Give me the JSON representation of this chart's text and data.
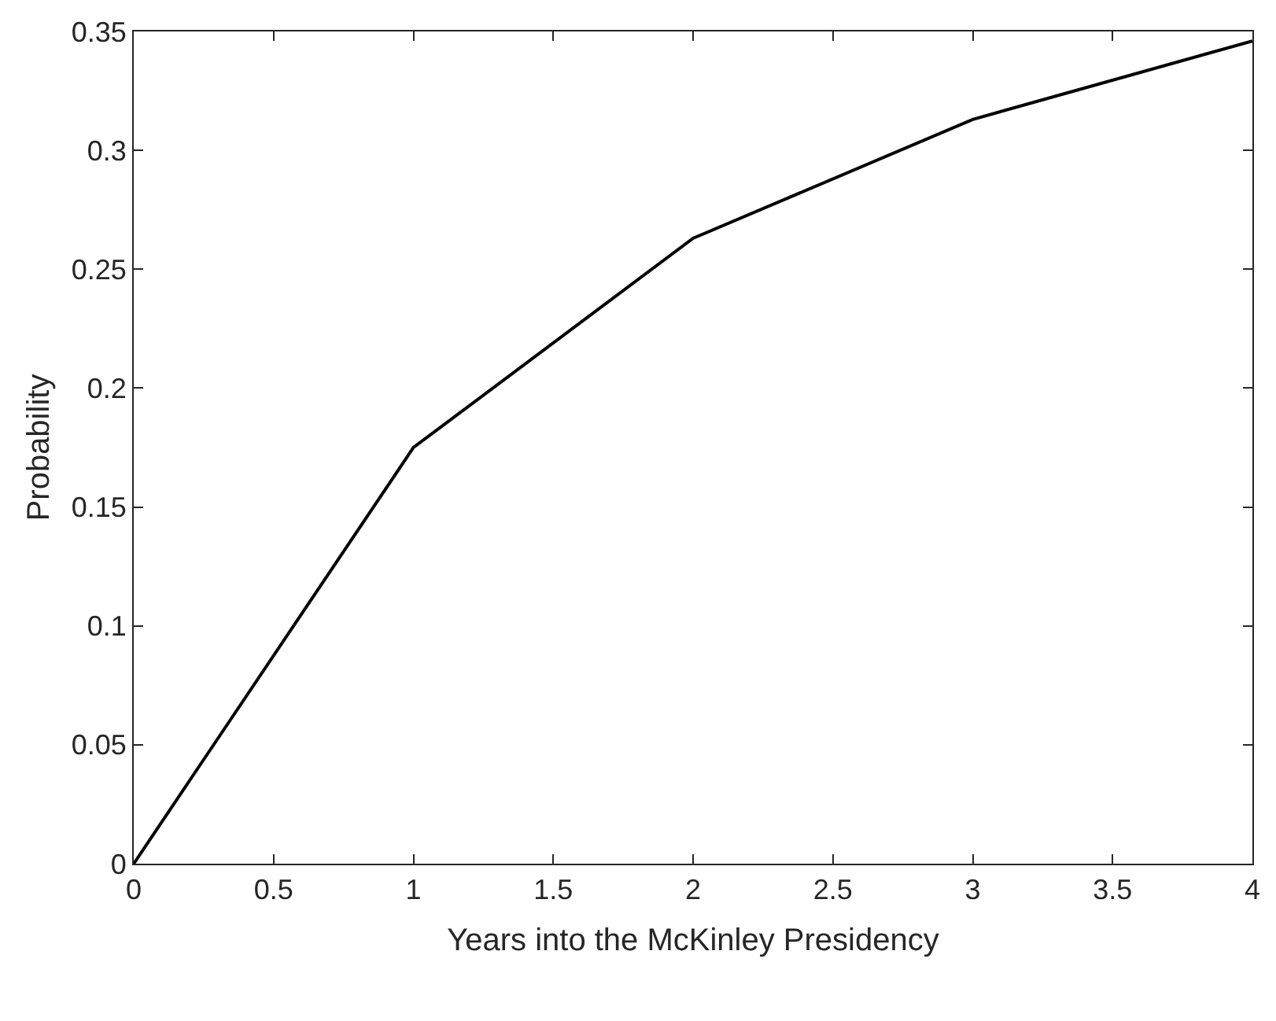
{
  "chart_data": {
    "type": "line",
    "xlabel": "Years into the McKinley Presidency",
    "ylabel": "Probability",
    "x": [
      0,
      1,
      2,
      3,
      4
    ],
    "series": [
      {
        "color": "#000000",
        "values": [
          0,
          0.175,
          0.263,
          0.313,
          0.346
        ]
      }
    ],
    "xlim": [
      0,
      4
    ],
    "xticks": [
      0,
      0.5,
      1,
      1.5,
      2,
      2.5,
      3,
      3.5,
      4
    ],
    "ylim": [
      0,
      0.35
    ],
    "yticks": [
      0,
      0.05,
      0.1,
      0.15,
      0.2,
      0.25,
      0.3,
      0.35
    ],
    "marker": "none",
    "line_style": "solid"
  }
}
